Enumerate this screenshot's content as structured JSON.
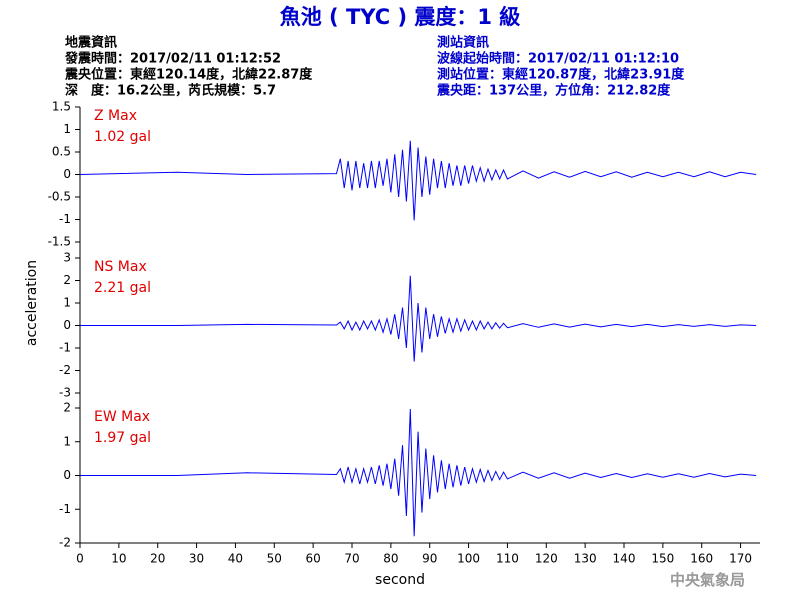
{
  "header": {
    "title": "魚池 ( TYC ) 震度：1 級",
    "left": [
      "地震資訊",
      "發震時間：2017/02/11 01:12:52",
      "震央位置：東經120.14度，北緯22.87度",
      "深　度：16.2公里，芮氏規模：5.7"
    ],
    "right": [
      "測站資訊",
      "波線起始時間：2017/02/11 01:12:10",
      "測站位置：東經120.87度，北緯23.91度",
      "震央距：137公里，方位角：212.82度"
    ],
    "footer": "中央氣象局"
  },
  "chart_data": [
    {
      "type": "line",
      "title": "Z Max",
      "subtitle": "1.02 gal",
      "color": "#0000ff",
      "ylabel": "acceleration",
      "xlim": [
        0,
        175
      ],
      "ylim": [
        -1.5,
        1.5
      ],
      "yticks": [
        1.5,
        1,
        0.5,
        0,
        -0.5,
        -1,
        -1.5
      ],
      "x": [
        0,
        25,
        43,
        66,
        67,
        68,
        69,
        70,
        71,
        72,
        73,
        74,
        75,
        76,
        77,
        78,
        79,
        80,
        81,
        82,
        83,
        84,
        85,
        86,
        87,
        88,
        89,
        90,
        91,
        92,
        93,
        94,
        95,
        96,
        97,
        98,
        99,
        100,
        101,
        102,
        103,
        104,
        105,
        106,
        107,
        108,
        109,
        110,
        114,
        118,
        122,
        126,
        130,
        134,
        138,
        142,
        146,
        150,
        154,
        158,
        162,
        166,
        170,
        174
      ],
      "values": [
        0,
        0.05,
        0,
        0.02,
        0.35,
        -0.3,
        0.3,
        -0.35,
        0.3,
        -0.3,
        0.25,
        -0.3,
        0.3,
        -0.3,
        0.3,
        -0.25,
        0.35,
        -0.4,
        0.45,
        -0.5,
        0.55,
        -0.6,
        0.75,
        -1.02,
        0.6,
        -0.5,
        0.4,
        -0.45,
        0.35,
        -0.3,
        0.3,
        -0.3,
        0.25,
        -0.25,
        0.2,
        -0.25,
        0.2,
        -0.2,
        0.2,
        -0.15,
        0.15,
        -0.15,
        0.12,
        -0.12,
        0.1,
        -0.1,
        0.1,
        -0.1,
        0.08,
        -0.08,
        0.06,
        -0.06,
        0.07,
        -0.05,
        0.06,
        -0.06,
        0.05,
        -0.05,
        0.05,
        -0.05,
        0.06,
        -0.05,
        0.05,
        0
      ]
    },
    {
      "type": "line",
      "title": "NS Max",
      "subtitle": "2.21 gal",
      "color": "#0000ff",
      "xlim": [
        0,
        175
      ],
      "ylim": [
        -3,
        3
      ],
      "yticks": [
        3,
        2,
        1,
        0,
        -1,
        -2,
        -3
      ],
      "x": [
        0,
        25,
        43,
        66,
        67,
        68,
        69,
        70,
        71,
        72,
        73,
        74,
        75,
        76,
        77,
        78,
        79,
        80,
        81,
        82,
        83,
        84,
        85,
        86,
        87,
        88,
        89,
        90,
        91,
        92,
        93,
        94,
        95,
        96,
        97,
        98,
        99,
        100,
        101,
        102,
        103,
        104,
        105,
        106,
        107,
        108,
        109,
        110,
        114,
        118,
        122,
        126,
        130,
        134,
        138,
        142,
        146,
        150,
        154,
        158,
        162,
        166,
        170,
        174
      ],
      "values": [
        0,
        0,
        0.05,
        0.02,
        0.15,
        -0.15,
        0.2,
        -0.2,
        0.15,
        -0.2,
        0.2,
        -0.15,
        0.2,
        -0.2,
        0.25,
        -0.3,
        0.3,
        -0.4,
        0.5,
        -0.6,
        0.8,
        -1.0,
        2.21,
        -1.6,
        1.0,
        -1.2,
        0.8,
        -0.6,
        0.5,
        -0.5,
        0.4,
        -0.35,
        0.3,
        -0.3,
        0.3,
        -0.25,
        0.25,
        -0.2,
        0.2,
        -0.2,
        0.2,
        -0.15,
        0.15,
        -0.15,
        0.12,
        -0.12,
        0.1,
        -0.1,
        0.08,
        -0.08,
        0.07,
        -0.07,
        0.06,
        -0.06,
        0.05,
        -0.05,
        0.05,
        -0.05,
        0.04,
        -0.04,
        0.04,
        -0.04,
        0.03,
        0
      ]
    },
    {
      "type": "line",
      "title": "EW Max",
      "subtitle": "1.97 gal",
      "color": "#0000ff",
      "xlabel": "second",
      "xlim": [
        0,
        175
      ],
      "ylim": [
        -2,
        2
      ],
      "yticks": [
        2,
        1,
        0,
        -1,
        -2
      ],
      "xticks": [
        0,
        10,
        20,
        30,
        40,
        50,
        60,
        70,
        80,
        90,
        100,
        110,
        120,
        130,
        140,
        150,
        160,
        170
      ],
      "x": [
        0,
        25,
        43,
        66,
        67,
        68,
        69,
        70,
        71,
        72,
        73,
        74,
        75,
        76,
        77,
        78,
        79,
        80,
        81,
        82,
        83,
        84,
        85,
        86,
        87,
        88,
        89,
        90,
        91,
        92,
        93,
        94,
        95,
        96,
        97,
        98,
        99,
        100,
        101,
        102,
        103,
        104,
        105,
        106,
        107,
        108,
        109,
        110,
        114,
        118,
        122,
        126,
        130,
        134,
        138,
        142,
        146,
        150,
        154,
        158,
        162,
        166,
        170,
        174
      ],
      "values": [
        0,
        0,
        0.08,
        0.03,
        0.2,
        -0.2,
        0.25,
        -0.2,
        0.2,
        -0.25,
        0.2,
        -0.2,
        0.25,
        -0.25,
        0.3,
        -0.3,
        0.35,
        -0.4,
        0.5,
        -0.6,
        0.9,
        -1.2,
        1.97,
        -1.8,
        1.3,
        -1.1,
        0.8,
        -0.7,
        0.6,
        -0.5,
        0.45,
        -0.4,
        0.35,
        -0.35,
        0.3,
        -0.3,
        0.25,
        -0.25,
        0.2,
        -0.2,
        0.18,
        -0.18,
        0.15,
        -0.15,
        0.12,
        -0.12,
        0.1,
        -0.1,
        0.1,
        -0.08,
        0.08,
        -0.08,
        0.07,
        -0.06,
        0.06,
        -0.06,
        0.05,
        -0.05,
        0.05,
        -0.05,
        0.06,
        -0.04,
        0.04,
        0
      ]
    }
  ]
}
